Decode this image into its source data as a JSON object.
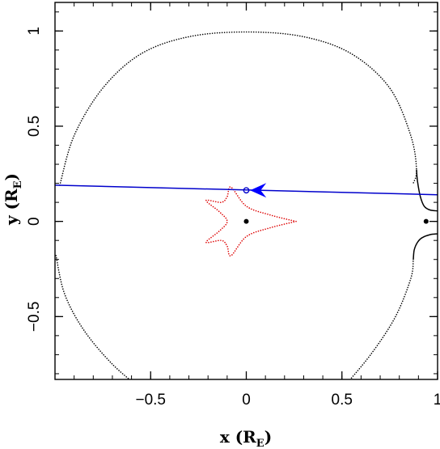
{
  "chart_data": {
    "type": "scatter",
    "title": "",
    "xlabel": "x (R",
    "xlabel_sub": "E",
    "xlabel_close": ")",
    "ylabel": "y (R",
    "ylabel_sub": "E",
    "ylabel_close": ")",
    "xlim": [
      -1.0,
      1.0
    ],
    "ylim": [
      -0.83,
      1.15
    ],
    "xticks": [
      -0.5,
      0,
      0.5,
      1
    ],
    "xtick_labels": [
      "−0.5",
      "0",
      "0.5",
      "1"
    ],
    "yticks": [
      -0.5,
      0,
      0.5,
      1
    ],
    "ytick_labels": [
      "−0.5",
      "0",
      "0.5",
      "1"
    ],
    "grid": false,
    "series": [
      {
        "role": "critical-curve-outer",
        "style": "dotted",
        "color": "#000000",
        "points": [
          [
            -0.975,
            0.19
          ],
          [
            -0.9,
            0.45
          ],
          [
            -0.75,
            0.7
          ],
          [
            -0.55,
            0.88
          ],
          [
            -0.3,
            0.97
          ],
          [
            0.0,
            0.995
          ],
          [
            0.3,
            0.97
          ],
          [
            0.55,
            0.88
          ],
          [
            0.75,
            0.7
          ],
          [
            0.86,
            0.45
          ],
          [
            0.89,
            0.27
          ],
          [
            0.873,
            0.2
          ]
        ]
      },
      {
        "role": "critical-curve-outer-lower",
        "style": "dotted",
        "color": "#000000",
        "points": [
          [
            -0.995,
            -0.18
          ],
          [
            -0.95,
            -0.38
          ],
          [
            -0.85,
            -0.57
          ],
          [
            -0.7,
            -0.75
          ],
          [
            -0.55,
            -0.88
          ]
        ]
      },
      {
        "role": "critical-curve-right-lower",
        "style": "dotted",
        "color": "#000000",
        "points": [
          [
            0.5,
            -0.88
          ],
          [
            0.65,
            -0.7
          ],
          [
            0.78,
            -0.5
          ],
          [
            0.86,
            -0.3
          ],
          [
            0.873,
            -0.2
          ]
        ]
      },
      {
        "role": "secondary-critical-upper",
        "style": "solid",
        "color": "#000000",
        "points": [
          [
            0.89,
            0.27
          ],
          [
            0.895,
            0.21
          ],
          [
            0.91,
            0.13
          ],
          [
            0.93,
            0.08
          ],
          [
            0.96,
            0.06
          ],
          [
            1.0,
            0.055
          ]
        ]
      },
      {
        "role": "secondary-critical-lower",
        "style": "solid",
        "color": "#000000",
        "points": [
          [
            0.873,
            -0.2
          ],
          [
            0.878,
            -0.15
          ],
          [
            0.895,
            -0.11
          ],
          [
            0.92,
            -0.085
          ],
          [
            0.96,
            -0.07
          ],
          [
            1.0,
            -0.065
          ]
        ]
      },
      {
        "role": "caustic",
        "style": "dotted",
        "color": "#dd0000",
        "points": [
          [
            0.26,
            0.0
          ],
          [
            0.12,
            0.035
          ],
          [
            0.0,
            0.08
          ],
          [
            -0.08,
            0.18
          ],
          [
            -0.1,
            0.13
          ],
          [
            -0.13,
            0.1
          ],
          [
            -0.21,
            0.11
          ],
          [
            -0.14,
            0.05
          ],
          [
            -0.1,
            0.0
          ],
          [
            -0.14,
            -0.05
          ],
          [
            -0.21,
            -0.11
          ],
          [
            -0.13,
            -0.1
          ],
          [
            -0.1,
            -0.13
          ],
          [
            -0.08,
            -0.18
          ],
          [
            0.0,
            -0.08
          ],
          [
            0.12,
            -0.035
          ],
          [
            0.26,
            0.0
          ]
        ]
      },
      {
        "role": "source-trajectory",
        "style": "solid",
        "color": "#0000cc",
        "points": [
          [
            -1.0,
            0.19
          ],
          [
            1.0,
            0.14
          ]
        ]
      }
    ],
    "lens_masses": [
      [
        0.0,
        0.0
      ],
      [
        0.94,
        0.0
      ]
    ],
    "source_position": [
      0.0,
      0.163
    ],
    "trajectory_arrow_tip": [
      0.02,
      0.163
    ]
  }
}
